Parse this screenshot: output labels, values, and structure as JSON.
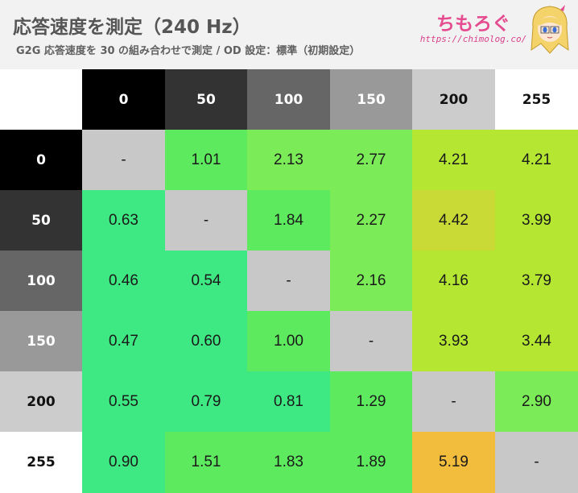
{
  "header": {
    "title": "応答速度を測定（240 Hz）",
    "subtitle": "G2G 応答速度を 30 の組み合わせで測定 / OD 設定：標準（初期設定）",
    "logo_text": "ちもろぐ",
    "logo_url": "https://chimolog.co/"
  },
  "chart_data": {
    "type": "heatmap",
    "row_labels": [
      "0",
      "50",
      "100",
      "150",
      "200",
      "255"
    ],
    "col_labels": [
      "0",
      "50",
      "100",
      "150",
      "200",
      "255"
    ],
    "values": [
      [
        null,
        1.01,
        2.13,
        2.77,
        4.21,
        4.21
      ],
      [
        0.63,
        null,
        1.84,
        2.27,
        4.42,
        3.99
      ],
      [
        0.46,
        0.54,
        null,
        2.16,
        4.16,
        3.79
      ],
      [
        0.47,
        0.6,
        1.0,
        null,
        3.93,
        3.44
      ],
      [
        0.55,
        0.79,
        0.81,
        1.29,
        null,
        2.9
      ],
      [
        0.9,
        1.51,
        1.83,
        1.89,
        5.19,
        null
      ]
    ],
    "labels": [
      [
        "-",
        "1.01",
        "2.13",
        "2.77",
        "4.21",
        "4.21"
      ],
      [
        "0.63",
        "-",
        "1.84",
        "2.27",
        "4.42",
        "3.99"
      ],
      [
        "0.46",
        "0.54",
        "-",
        "2.16",
        "4.16",
        "3.79"
      ],
      [
        "0.47",
        "0.60",
        "1.00",
        "-",
        "3.93",
        "3.44"
      ],
      [
        "0.55",
        "0.79",
        "0.81",
        "1.29",
        "-",
        "2.90"
      ],
      [
        "0.90",
        "1.51",
        "1.83",
        "1.89",
        "5.19",
        "-"
      ]
    ],
    "header_colors": [
      "#000000",
      "#333333",
      "#666666",
      "#999999",
      "#cccccc",
      "#ffffff"
    ],
    "header_text_colors": [
      "#ffffff",
      "#ffffff",
      "#ffffff",
      "#ffffff",
      "#111111",
      "#111111"
    ],
    "diagonal_color": "#c8c8c8",
    "colors": {
      "fast": "#3ee882",
      "mid": "#5dea5e",
      "upper_mid": "#7ceb58",
      "slow": "#b4e632",
      "slower": "#c9d936",
      "slowest": "#f2bc3c"
    }
  }
}
